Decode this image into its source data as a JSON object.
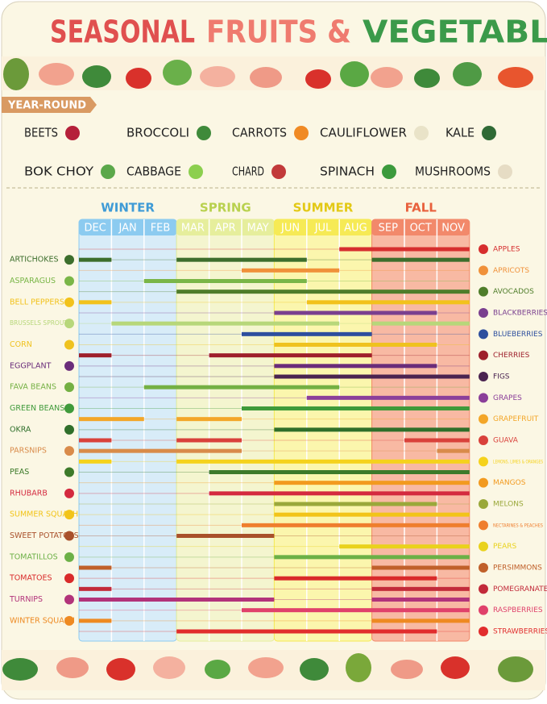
{
  "header": {
    "title_parts": [
      "SEASONAL",
      "FRUITS &",
      "VEGETABLES"
    ],
    "title_colors": [
      "#e0504f",
      "#ef7b6f",
      "#3b9a4a"
    ]
  },
  "year_round": {
    "label": "YEAR-ROUND",
    "items": [
      "BEETS",
      "BROCCOLI",
      "CARROTS",
      "CAULIFLOWER",
      "KALE",
      "BOK CHOY",
      "CABBAGE",
      "CHARD",
      "SPINACH",
      "MUSHROOMS"
    ],
    "icon_colors": [
      "#b5203a",
      "#3f8a3a",
      "#f08a24",
      "#e9e3c8",
      "#2f6a35",
      "#5ba84a",
      "#8ccf4e",
      "#c23a3a",
      "#3c9a3c",
      "#e6dcc4"
    ]
  },
  "calendar": {
    "seasons": [
      {
        "name": "WINTER",
        "months": [
          "DEC",
          "JAN",
          "FEB"
        ],
        "color": "#3f9bd6",
        "head": "#8ccbf0",
        "bg": "#d8ecf8"
      },
      {
        "name": "SPRING",
        "months": [
          "MAR",
          "APR",
          "MAY"
        ],
        "color": "#b9d14f",
        "head": "#e6ee9c",
        "bg": "#f4f5cf"
      },
      {
        "name": "SUMMER",
        "months": [
          "JUN",
          "JUL",
          "AUG"
        ],
        "color": "#e3c916",
        "head": "#f6ea55",
        "bg": "#fbf6ad"
      },
      {
        "name": "FALL",
        "months": [
          "SEP",
          "OCT",
          "NOV"
        ],
        "color": "#e8603c",
        "head": "#f2896b",
        "bg": "#f8b9a3"
      }
    ],
    "rows": [
      {
        "label": "APPLES",
        "side": "right",
        "color": "#d62e2e",
        "bars": [
          [
            8,
            12
          ]
        ]
      },
      {
        "label": "ARTICHOKES",
        "side": "left",
        "color": "#3c6e2c",
        "bars": [
          [
            0,
            1
          ],
          [
            3,
            7
          ],
          [
            9,
            12
          ]
        ]
      },
      {
        "label": "APRICOTS",
        "side": "right",
        "color": "#f0913a",
        "bars": [
          [
            5,
            8
          ]
        ]
      },
      {
        "label": "ASPARAGUS",
        "side": "left",
        "color": "#7ab648",
        "bars": [
          [
            2,
            7
          ]
        ]
      },
      {
        "label": "AVOCADOS",
        "side": "right",
        "color": "#4f7d2a",
        "bars": [
          [
            3,
            12
          ]
        ]
      },
      {
        "label": "BELL PEPPERS",
        "side": "left",
        "color": "#f2c21b",
        "bars": [
          [
            0,
            1
          ],
          [
            7,
            12
          ]
        ]
      },
      {
        "label": "BLACKBERRIES",
        "side": "right",
        "color": "#7a3f8f",
        "bars": [
          [
            6,
            11
          ]
        ]
      },
      {
        "label": "BRUSSELS SPROUTS",
        "side": "left",
        "color": "#b7d77a",
        "bars": [
          [
            1,
            8
          ],
          [
            9,
            12
          ]
        ]
      },
      {
        "label": "BLUEBERRIES",
        "side": "right",
        "color": "#2e4f9e",
        "bars": [
          [
            5,
            9
          ]
        ]
      },
      {
        "label": "CORN",
        "side": "left",
        "color": "#efc21e",
        "bars": [
          [
            6,
            11
          ]
        ]
      },
      {
        "label": "CHERRIES",
        "side": "right",
        "color": "#9e1f2b",
        "bars": [
          [
            0,
            1
          ],
          [
            4,
            9
          ]
        ]
      },
      {
        "label": "EGGPLANT",
        "side": "left",
        "color": "#6a2c7a",
        "bars": [
          [
            6,
            11
          ]
        ]
      },
      {
        "label": "FIGS",
        "side": "right",
        "color": "#4a2350",
        "bars": [
          [
            6,
            12
          ]
        ]
      },
      {
        "label": "FAVA BEANS",
        "side": "left",
        "color": "#74b043",
        "bars": [
          [
            2,
            8
          ]
        ]
      },
      {
        "label": "GRAPES",
        "side": "right",
        "color": "#8b3f9a",
        "bars": [
          [
            7,
            12
          ]
        ]
      },
      {
        "label": "GREEN BEANS",
        "side": "left",
        "color": "#3f9a3a",
        "bars": [
          [
            5,
            12
          ]
        ]
      },
      {
        "label": "GRAPEFRUIT",
        "side": "right",
        "color": "#f3a628",
        "bars": [
          [
            0,
            2
          ],
          [
            3,
            5
          ]
        ]
      },
      {
        "label": "OKRA",
        "side": "left",
        "color": "#2f6f2a",
        "bars": [
          [
            6,
            12
          ]
        ]
      },
      {
        "label": "GUAVA",
        "side": "right",
        "color": "#d9413b",
        "bars": [
          [
            0,
            1
          ],
          [
            3,
            5
          ],
          [
            10,
            12
          ]
        ]
      },
      {
        "label": "PARSNIPS",
        "side": "left",
        "color": "#d98b4a",
        "bars": [
          [
            0,
            5
          ],
          [
            11,
            12
          ]
        ]
      },
      {
        "label": "LEMONS, LIMES & ORANGES",
        "side": "right",
        "color": "#f5d21c",
        "bars": [
          [
            0,
            1
          ],
          [
            3,
            12
          ]
        ]
      },
      {
        "label": "PEAS",
        "side": "left",
        "color": "#3d7a2a",
        "bars": [
          [
            4,
            12
          ]
        ]
      },
      {
        "label": "MANGOS",
        "side": "right",
        "color": "#f29a1f",
        "bars": [
          [
            6,
            12
          ]
        ]
      },
      {
        "label": "RHUBARB",
        "side": "left",
        "color": "#d42a3f",
        "bars": [
          [
            4,
            12
          ]
        ]
      },
      {
        "label": "MELONS",
        "side": "right",
        "color": "#9aa83a",
        "bars": [
          [
            6,
            11
          ]
        ]
      },
      {
        "label": "SUMMER SQUASH",
        "side": "left",
        "color": "#f2c419",
        "bars": [
          [
            6,
            12
          ]
        ]
      },
      {
        "label": "NECTARINES & PEACHES",
        "side": "right",
        "color": "#ef7e2e",
        "bars": [
          [
            5,
            12
          ]
        ]
      },
      {
        "label": "SWEET POTATOES",
        "side": "left",
        "color": "#a9502a",
        "bars": [
          [
            3,
            6
          ]
        ]
      },
      {
        "label": "PEARS",
        "side": "right",
        "color": "#e9d21c",
        "bars": [
          [
            8,
            12
          ]
        ]
      },
      {
        "label": "TOMATILLOS",
        "side": "left",
        "color": "#6cb046",
        "bars": [
          [
            6,
            12
          ]
        ]
      },
      {
        "label": "PERSIMMONS",
        "side": "right",
        "color": "#c0602a",
        "bars": [
          [
            0,
            1
          ],
          [
            9,
            12
          ]
        ]
      },
      {
        "label": "TOMATOES",
        "side": "left",
        "color": "#d92a2a",
        "bars": [
          [
            6,
            11
          ]
        ]
      },
      {
        "label": "POMEGRANATES",
        "side": "right",
        "color": "#c22a3a",
        "bars": [
          [
            0,
            1
          ],
          [
            9,
            12
          ]
        ]
      },
      {
        "label": "TURNIPS",
        "side": "left",
        "color": "#b2337a",
        "bars": [
          [
            0,
            6
          ],
          [
            9,
            12
          ]
        ]
      },
      {
        "label": "RASPBERRIES",
        "side": "right",
        "color": "#e0416b",
        "bars": [
          [
            5,
            12
          ]
        ]
      },
      {
        "label": "WINTER SQUASH",
        "side": "left",
        "color": "#ee8a22",
        "bars": [
          [
            0,
            1
          ],
          [
            9,
            12
          ]
        ]
      },
      {
        "label": "STRAWBERRIES",
        "side": "right",
        "color": "#e12d2d",
        "bars": [
          [
            3,
            11
          ]
        ]
      }
    ]
  }
}
